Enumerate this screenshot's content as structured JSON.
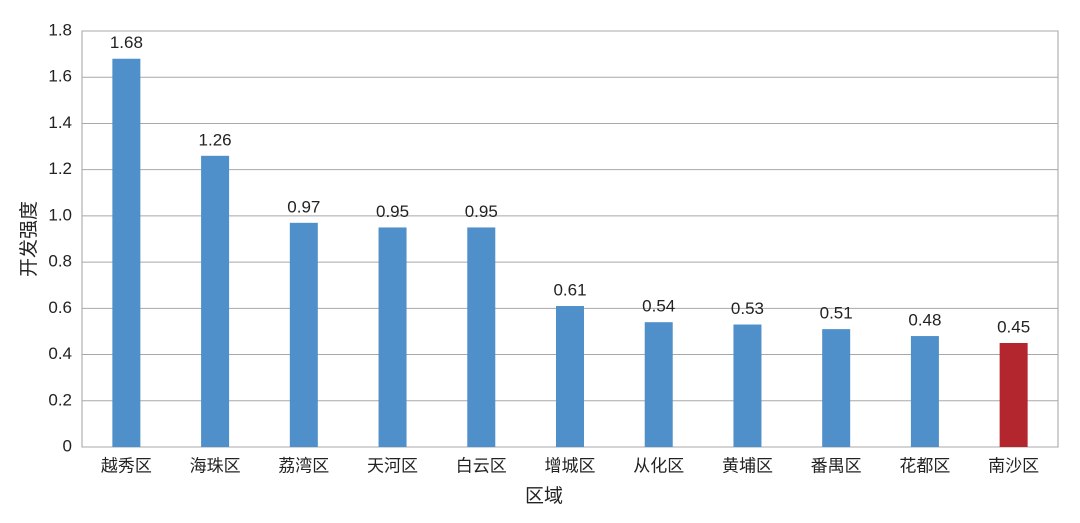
{
  "chart_data": {
    "type": "bar",
    "x_label": "区域",
    "y_label": "开发强度",
    "categories": [
      "越秀区",
      "海珠区",
      "荔湾区",
      "天河区",
      "白云区",
      "增城区",
      "从化区",
      "黄埔区",
      "番禺区",
      "花都区",
      "南沙区"
    ],
    "values": [
      1.68,
      1.26,
      0.97,
      0.95,
      0.95,
      0.61,
      0.54,
      0.53,
      0.51,
      0.48,
      0.45
    ],
    "colors": [
      "#4f8fca",
      "#4f8fca",
      "#4f8fca",
      "#4f8fca",
      "#4f8fca",
      "#4f8fca",
      "#4f8fca",
      "#4f8fca",
      "#4f8fca",
      "#4f8fca",
      "#b3262d"
    ],
    "ylim": [
      0,
      1.8
    ],
    "yticks": [
      0,
      0.2,
      0.4,
      0.6,
      0.8,
      {
        "value": 1,
        "label": "1.0"
      },
      1.2,
      1.4,
      1.6,
      1.8
    ],
    "grid": true
  }
}
